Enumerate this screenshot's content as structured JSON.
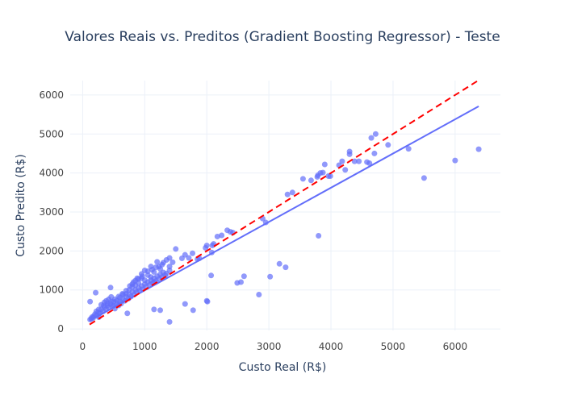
{
  "chart_data": {
    "type": "scatter",
    "title": "Valores Reais vs. Preditos (Gradient Boosting Regressor) - Teste",
    "xlabel": "Custo Real (R$)",
    "ylabel": "Custo Predito (R$)",
    "xlim": [
      -200,
      6730
    ],
    "ylim": [
      -40,
      6370
    ],
    "xticks": [
      0,
      1000,
      2000,
      3000,
      4000,
      5000,
      6000
    ],
    "yticks": [
      0,
      1000,
      2000,
      3000,
      4000,
      5000,
      6000
    ],
    "grid": true,
    "series": [
      {
        "color": "#636efa",
        "mode": "markers",
        "x": [
          120,
          210,
          450,
          1150,
          1250,
          1400,
          1650,
          1780,
          2000,
          2010,
          2070,
          2490,
          2550,
          2600,
          2840,
          3020,
          3170,
          3270,
          3800,
          5500,
          6000,
          6380,
          5250,
          4700,
          4620,
          4580,
          4450,
          4380,
          4300,
          4300,
          4650,
          4720,
          4920,
          4230,
          4130,
          4180,
          3900,
          3830,
          3870,
          3790,
          3780,
          3960,
          3990,
          3680,
          3550,
          3380,
          3300,
          2950,
          2900,
          2420,
          2330,
          2380,
          2240,
          2170,
          2110,
          2090,
          2080,
          1980,
          2000,
          1850,
          1880,
          1770,
          1710,
          1650,
          1600,
          1500,
          1450,
          1400,
          1400,
          1350,
          1300,
          1250,
          1200,
          1150,
          1100,
          1050,
          1000,
          950,
          900,
          850,
          800,
          750,
          700,
          650,
          600,
          550,
          500,
          450,
          400,
          350,
          300,
          250,
          200,
          150,
          120,
          140,
          180,
          220,
          260,
          300,
          350,
          380,
          420,
          460,
          500,
          550,
          600,
          650,
          700,
          750,
          800,
          850,
          900,
          950,
          1000,
          1050,
          1100,
          1150,
          1200,
          1250,
          1300,
          1350,
          1400,
          1150,
          1100,
          1050,
          1000,
          950,
          900,
          850,
          800,
          720,
          380,
          330,
          280,
          230,
          170,
          260,
          420,
          480,
          520,
          580,
          620,
          680,
          740,
          780,
          830,
          870,
          920,
          970,
          1020,
          1080,
          1130,
          1180,
          1230,
          1280,
          1330,
          1230,
          1280,
          1180,
          1120,
          960,
          880,
          820,
          760,
          700,
          640,
          580,
          520,
          460,
          400,
          340
        ],
        "values": [
          700,
          930,
          1060,
          500,
          480,
          180,
          640,
          480,
          720,
          700,
          1370,
          1180,
          1200,
          1350,
          880,
          1340,
          1670,
          1580,
          2390,
          3870,
          4320,
          4610,
          4620,
          4500,
          4250,
          4280,
          4300,
          4300,
          4480,
          4550,
          4900,
          5000,
          4720,
          4080,
          4200,
          4300,
          4220,
          4000,
          4010,
          3940,
          3900,
          3920,
          3920,
          3810,
          3850,
          3500,
          3450,
          2730,
          2830,
          2470,
          2530,
          2490,
          2400,
          2370,
          2180,
          2140,
          1960,
          2080,
          2140,
          1790,
          1810,
          1940,
          1820,
          1900,
          1810,
          2050,
          1710,
          1600,
          1820,
          1770,
          1700,
          1540,
          1720,
          1460,
          1600,
          1480,
          1500,
          1410,
          1280,
          1240,
          1080,
          1000,
          900,
          880,
          800,
          720,
          700,
          640,
          600,
          560,
          500,
          420,
          380,
          300,
          240,
          260,
          330,
          450,
          500,
          620,
          680,
          720,
          760,
          820,
          600,
          640,
          700,
          760,
          820,
          880,
          950,
          1000,
          1050,
          1100,
          1150,
          1200,
          1250,
          1300,
          1350,
          1400,
          1450,
          1420,
          1500,
          1200,
          1330,
          1380,
          1250,
          1300,
          1180,
          1120,
          1150,
          400,
          500,
          450,
          400,
          350,
          280,
          300,
          550,
          580,
          520,
          600,
          650,
          720,
          780,
          830,
          880,
          940,
          980,
          1020,
          1080,
          1130,
          1180,
          1230,
          1280,
          1330,
          1380,
          1600,
          1650,
          1580,
          1520,
          1350,
          1300,
          1200,
          1100,
          980,
          900,
          830,
          760,
          700,
          650,
          600
        ]
      },
      {
        "color": "#636efa",
        "mode": "line",
        "x": [
          112,
          6380
        ],
        "values": [
          210,
          5710
        ]
      },
      {
        "color": "#ff0000",
        "mode": "dashed-line",
        "x": [
          112,
          6380
        ],
        "values": [
          112,
          6380
        ]
      }
    ]
  }
}
